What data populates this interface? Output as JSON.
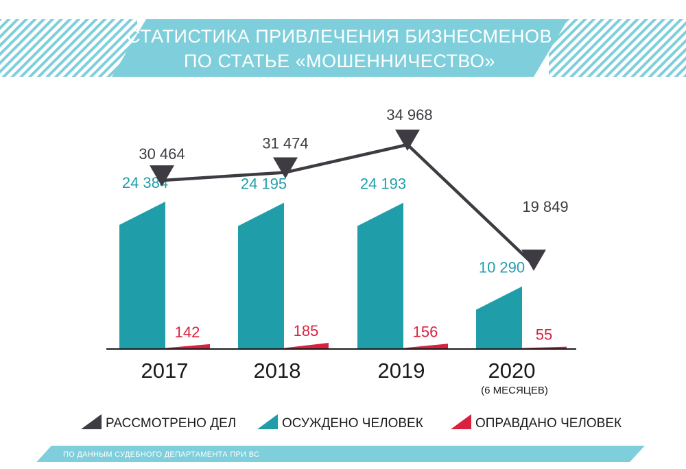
{
  "header": {
    "title_line1": "СТАТИСТИКА ПРИВЛЕЧЕНИЯ БИЗНЕСМЕНОВ",
    "title_line2": "ПО СТАТЬЕ «МОШЕННИЧЕСТВО»"
  },
  "colors": {
    "banner": "#7ecfdb",
    "considered": "#3f3b42",
    "convicted": "#1f9eaa",
    "acquitted": "#d9213f"
  },
  "chart_data": {
    "type": "bar",
    "categories": [
      "2017",
      "2018",
      "2019",
      "2020"
    ],
    "category_notes": [
      "",
      "",
      "",
      "(6 МЕСЯЦЕВ)"
    ],
    "series": [
      {
        "name": "РАССМОТРЕНО ДЕЛ",
        "kind": "line",
        "values": [
          30464,
          31474,
          34968,
          19849
        ],
        "labels": [
          "30 464",
          "31 474",
          "34 968",
          "19 849"
        ]
      },
      {
        "name": "ОСУЖДЕНО ЧЕЛОВЕК",
        "kind": "bar",
        "values": [
          24384,
          24195,
          24193,
          10290
        ],
        "labels": [
          "24 384",
          "24 195",
          "24 193",
          "10 290"
        ]
      },
      {
        "name": "ОПРАВДАНО ЧЕЛОВЕК",
        "kind": "bar",
        "values": [
          142,
          185,
          156,
          55
        ],
        "labels": [
          "142",
          "185",
          "156",
          "55"
        ]
      }
    ],
    "legend_position": "bottom",
    "grid": false
  },
  "footer": {
    "source": "ПО ДАННЫМ СУДЕБНОГО ДЕПАРТАМЕНТА ПРИ ВС"
  }
}
